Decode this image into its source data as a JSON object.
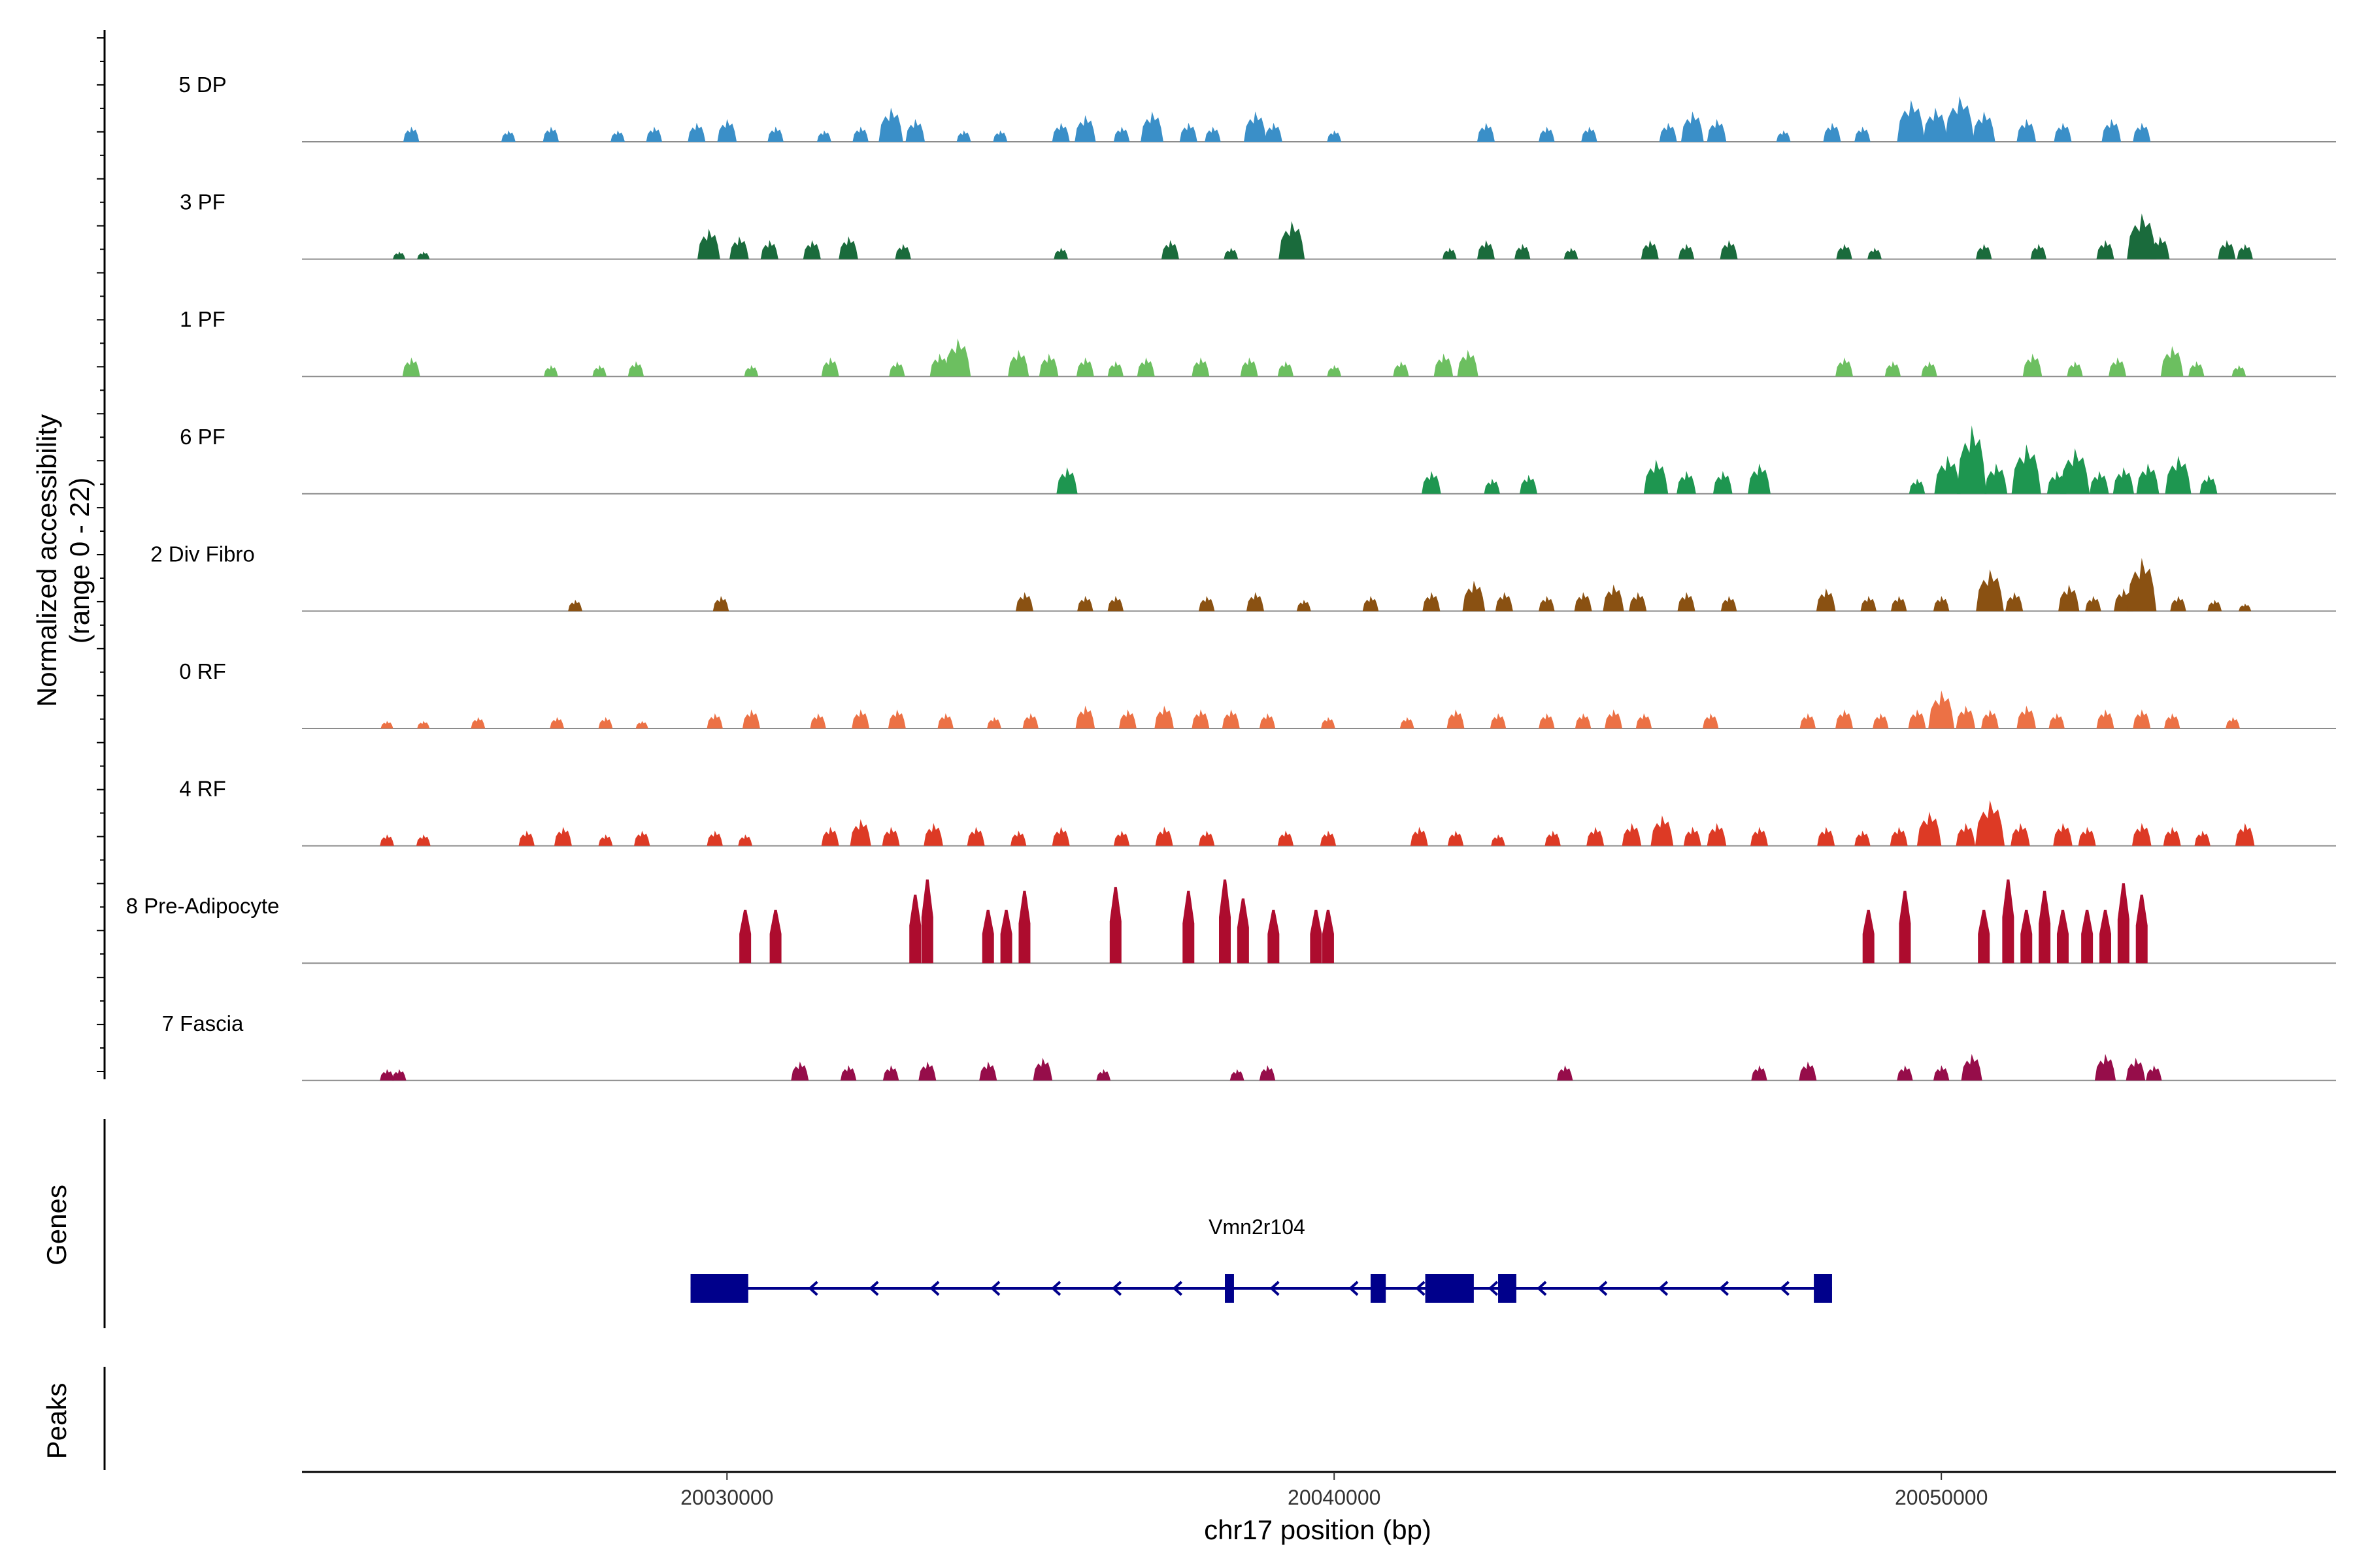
{
  "chart_data": {
    "type": "coverage",
    "title": "",
    "ylabel_line1": "Normalized accessibility",
    "ylabel_line2": "(range 0 - 22)",
    "yrange": [
      0,
      22
    ],
    "xlabel": "chr17 position (bp)",
    "xlim": [
      20023000,
      20056500
    ],
    "xticks": [
      {
        "value": 20030000,
        "label": "20030000"
      },
      {
        "value": 20040000,
        "label": "20040000"
      },
      {
        "value": 20050000,
        "label": "20050000"
      }
    ],
    "tracks": [
      {
        "name": "5 DP",
        "color": "#3a8fc8",
        "peaks": [
          [
            20024800,
            4
          ],
          [
            20026400,
            3
          ],
          [
            20027100,
            4
          ],
          [
            20028200,
            3
          ],
          [
            20028800,
            4
          ],
          [
            20029500,
            5
          ],
          [
            20030000,
            6
          ],
          [
            20030800,
            4
          ],
          [
            20031600,
            3
          ],
          [
            20032200,
            4
          ],
          [
            20032700,
            9
          ],
          [
            20033100,
            6
          ],
          [
            20033900,
            3
          ],
          [
            20034500,
            3
          ],
          [
            20035500,
            5
          ],
          [
            20035900,
            7
          ],
          [
            20036500,
            4
          ],
          [
            20037000,
            8
          ],
          [
            20037600,
            5
          ],
          [
            20038000,
            4
          ],
          [
            20038700,
            8
          ],
          [
            20039000,
            5
          ],
          [
            20040000,
            3
          ],
          [
            20042500,
            5
          ],
          [
            20043500,
            4
          ],
          [
            20044200,
            4
          ],
          [
            20045500,
            5
          ],
          [
            20045900,
            8
          ],
          [
            20046300,
            6
          ],
          [
            20047400,
            3
          ],
          [
            20048200,
            5
          ],
          [
            20048700,
            4
          ],
          [
            20049500,
            11
          ],
          [
            20049900,
            9
          ],
          [
            20050300,
            12
          ],
          [
            20050700,
            8
          ],
          [
            20051400,
            6
          ],
          [
            20052000,
            5
          ],
          [
            20052800,
            6
          ],
          [
            20053300,
            5
          ]
        ]
      },
      {
        "name": "3 PF",
        "color": "#1a6b3c",
        "peaks": [
          [
            20024600,
            2
          ],
          [
            20025000,
            2
          ],
          [
            20029700,
            8
          ],
          [
            20030200,
            6
          ],
          [
            20030700,
            5
          ],
          [
            20031400,
            5
          ],
          [
            20032000,
            6
          ],
          [
            20032900,
            4
          ],
          [
            20035500,
            3
          ],
          [
            20037300,
            5
          ],
          [
            20038300,
            3
          ],
          [
            20039300,
            10
          ],
          [
            20041900,
            3
          ],
          [
            20042500,
            5
          ],
          [
            20043100,
            4
          ],
          [
            20043900,
            3
          ],
          [
            20045200,
            5
          ],
          [
            20045800,
            4
          ],
          [
            20046500,
            5
          ],
          [
            20048400,
            4
          ],
          [
            20048900,
            3
          ],
          [
            20050700,
            4
          ],
          [
            20051600,
            4
          ],
          [
            20052700,
            5
          ],
          [
            20053300,
            12
          ],
          [
            20053600,
            6
          ],
          [
            20054700,
            5
          ],
          [
            20055000,
            4
          ]
        ]
      },
      {
        "name": "1 PF",
        "color": "#6cbf60",
        "peaks": [
          [
            20024800,
            5
          ],
          [
            20027100,
            3
          ],
          [
            20027900,
            3
          ],
          [
            20028500,
            4
          ],
          [
            20030400,
            3
          ],
          [
            20031700,
            5
          ],
          [
            20032800,
            4
          ],
          [
            20033500,
            6
          ],
          [
            20033800,
            10
          ],
          [
            20034800,
            7
          ],
          [
            20035300,
            6
          ],
          [
            20035900,
            5
          ],
          [
            20036400,
            4
          ],
          [
            20036900,
            5
          ],
          [
            20037800,
            5
          ],
          [
            20038600,
            5
          ],
          [
            20039200,
            4
          ],
          [
            20040000,
            3
          ],
          [
            20041100,
            4
          ],
          [
            20041800,
            6
          ],
          [
            20042200,
            7
          ],
          [
            20048400,
            5
          ],
          [
            20049200,
            4
          ],
          [
            20049800,
            4
          ],
          [
            20051500,
            6
          ],
          [
            20052200,
            4
          ],
          [
            20052900,
            5
          ],
          [
            20053800,
            8
          ],
          [
            20054200,
            4
          ],
          [
            20054900,
            3
          ]
        ]
      },
      {
        "name": "6 PF",
        "color": "#1e9650",
        "peaks": [
          [
            20035600,
            7
          ],
          [
            20041600,
            6
          ],
          [
            20042600,
            4
          ],
          [
            20043200,
            5
          ],
          [
            20045300,
            9
          ],
          [
            20045800,
            6
          ],
          [
            20046400,
            6
          ],
          [
            20047000,
            8
          ],
          [
            20049600,
            4
          ],
          [
            20050100,
            10
          ],
          [
            20050500,
            18
          ],
          [
            20050900,
            8
          ],
          [
            20051400,
            13
          ],
          [
            20051900,
            6
          ],
          [
            20052200,
            12
          ],
          [
            20052600,
            6
          ],
          [
            20053000,
            7
          ],
          [
            20053400,
            8
          ],
          [
            20053900,
            10
          ],
          [
            20054400,
            5
          ]
        ]
      },
      {
        "name": "2 Div Fibro",
        "color": "#8a5112",
        "peaks": [
          [
            20027500,
            3
          ],
          [
            20029900,
            4
          ],
          [
            20034900,
            5
          ],
          [
            20035900,
            4
          ],
          [
            20036400,
            4
          ],
          [
            20037900,
            4
          ],
          [
            20038700,
            5
          ],
          [
            20039500,
            3
          ],
          [
            20040600,
            4
          ],
          [
            20041600,
            5
          ],
          [
            20042300,
            8
          ],
          [
            20042800,
            5
          ],
          [
            20043500,
            4
          ],
          [
            20044100,
            5
          ],
          [
            20044600,
            7
          ],
          [
            20045000,
            5
          ],
          [
            20045800,
            5
          ],
          [
            20046500,
            4
          ],
          [
            20048100,
            6
          ],
          [
            20048800,
            4
          ],
          [
            20049300,
            4
          ],
          [
            20050000,
            4
          ],
          [
            20050800,
            11
          ],
          [
            20051200,
            5
          ],
          [
            20052100,
            7
          ],
          [
            20052500,
            4
          ],
          [
            20053000,
            6
          ],
          [
            20053300,
            14
          ],
          [
            20053900,
            4
          ],
          [
            20054500,
            3
          ],
          [
            20055000,
            2
          ]
        ]
      },
      {
        "name": "0 RF",
        "color": "#ec7145",
        "peaks": [
          [
            20024400,
            2
          ],
          [
            20025000,
            2
          ],
          [
            20025900,
            3
          ],
          [
            20027200,
            3
          ],
          [
            20028000,
            3
          ],
          [
            20028600,
            2
          ],
          [
            20029800,
            4
          ],
          [
            20030400,
            5
          ],
          [
            20031500,
            4
          ],
          [
            20032200,
            5
          ],
          [
            20032800,
            5
          ],
          [
            20033600,
            4
          ],
          [
            20034400,
            3
          ],
          [
            20035000,
            4
          ],
          [
            20035900,
            6
          ],
          [
            20036600,
            5
          ],
          [
            20037200,
            6
          ],
          [
            20037800,
            5
          ],
          [
            20038300,
            5
          ],
          [
            20038900,
            4
          ],
          [
            20039900,
            3
          ],
          [
            20041200,
            3
          ],
          [
            20042000,
            5
          ],
          [
            20042700,
            4
          ],
          [
            20043500,
            4
          ],
          [
            20044100,
            4
          ],
          [
            20044600,
            5
          ],
          [
            20045100,
            4
          ],
          [
            20046200,
            4
          ],
          [
            20047800,
            4
          ],
          [
            20048400,
            5
          ],
          [
            20049000,
            4
          ],
          [
            20049600,
            5
          ],
          [
            20050000,
            10
          ],
          [
            20050400,
            6
          ],
          [
            20050800,
            5
          ],
          [
            20051400,
            6
          ],
          [
            20051900,
            4
          ],
          [
            20052700,
            5
          ],
          [
            20053300,
            5
          ],
          [
            20053800,
            4
          ],
          [
            20054800,
            3
          ]
        ]
      },
      {
        "name": "4 RF",
        "color": "#dd3a25",
        "peaks": [
          [
            20024400,
            3
          ],
          [
            20025000,
            3
          ],
          [
            20026700,
            4
          ],
          [
            20027300,
            5
          ],
          [
            20028000,
            3
          ],
          [
            20028600,
            4
          ],
          [
            20029800,
            4
          ],
          [
            20030300,
            3
          ],
          [
            20031700,
            5
          ],
          [
            20032200,
            7
          ],
          [
            20032700,
            5
          ],
          [
            20033400,
            6
          ],
          [
            20034100,
            5
          ],
          [
            20034800,
            4
          ],
          [
            20035500,
            5
          ],
          [
            20036500,
            4
          ],
          [
            20037200,
            5
          ],
          [
            20037900,
            4
          ],
          [
            20039200,
            4
          ],
          [
            20039900,
            4
          ],
          [
            20041400,
            5
          ],
          [
            20042000,
            4
          ],
          [
            20042700,
            3
          ],
          [
            20043600,
            4
          ],
          [
            20044300,
            5
          ],
          [
            20044900,
            6
          ],
          [
            20045400,
            8
          ],
          [
            20045900,
            5
          ],
          [
            20046300,
            6
          ],
          [
            20047000,
            5
          ],
          [
            20048100,
            5
          ],
          [
            20048700,
            4
          ],
          [
            20049300,
            5
          ],
          [
            20049800,
            9
          ],
          [
            20050400,
            6
          ],
          [
            20050800,
            12
          ],
          [
            20051300,
            6
          ],
          [
            20052000,
            6
          ],
          [
            20052400,
            5
          ],
          [
            20053300,
            6
          ],
          [
            20053800,
            5
          ],
          [
            20054300,
            4
          ],
          [
            20055000,
            6
          ]
        ]
      },
      {
        "name": "8 Pre-Adipocyte",
        "color": "#ad0c2e",
        "peaks": [
          [
            20030300,
            14
          ],
          [
            20030800,
            14
          ],
          [
            20033100,
            18
          ],
          [
            20033300,
            22
          ],
          [
            20034300,
            14
          ],
          [
            20034600,
            14
          ],
          [
            20034900,
            19
          ],
          [
            20036400,
            20
          ],
          [
            20037600,
            19
          ],
          [
            20038200,
            22
          ],
          [
            20038500,
            17
          ],
          [
            20039000,
            14
          ],
          [
            20039700,
            14
          ],
          [
            20039900,
            14
          ],
          [
            20048800,
            14
          ],
          [
            20049400,
            19
          ],
          [
            20050700,
            14
          ],
          [
            20051100,
            22
          ],
          [
            20051400,
            14
          ],
          [
            20051700,
            19
          ],
          [
            20052000,
            14
          ],
          [
            20052400,
            14
          ],
          [
            20052700,
            14
          ],
          [
            20053000,
            21
          ],
          [
            20053300,
            18
          ]
        ]
      },
      {
        "name": "7 Fascia",
        "color": "#960d4a",
        "peaks": [
          [
            20024400,
            3
          ],
          [
            20024600,
            3
          ],
          [
            20031200,
            5
          ],
          [
            20032000,
            4
          ],
          [
            20032700,
            4
          ],
          [
            20033300,
            5
          ],
          [
            20034300,
            5
          ],
          [
            20035200,
            6
          ],
          [
            20036200,
            3
          ],
          [
            20038400,
            3
          ],
          [
            20038900,
            4
          ],
          [
            20043800,
            4
          ],
          [
            20047000,
            4
          ],
          [
            20047800,
            5
          ],
          [
            20049400,
            4
          ],
          [
            20050000,
            4
          ],
          [
            20050500,
            7
          ],
          [
            20052700,
            7
          ],
          [
            20053200,
            6
          ],
          [
            20053500,
            4
          ]
        ]
      }
    ],
    "genes": {
      "title": "Genes",
      "gene_name": "Vmn2r104",
      "color": "#00008b",
      "strand": "-",
      "start": 20029400,
      "end": 20048200,
      "exons": [
        [
          20029400,
          20030350
        ],
        [
          20038200,
          20038350
        ],
        [
          20040600,
          20040850
        ],
        [
          20041500,
          20042300
        ],
        [
          20042700,
          20043000
        ],
        [
          20047900,
          20048200
        ]
      ],
      "arrows": [
        20031400,
        20032400,
        20033400,
        20034400,
        20035400,
        20036400,
        20037400,
        20039000,
        20040300,
        20041400,
        20042600,
        20043400,
        20044400,
        20045400,
        20046400,
        20047400
      ]
    },
    "peaks_track": {
      "title": "Peaks",
      "regions": []
    }
  }
}
